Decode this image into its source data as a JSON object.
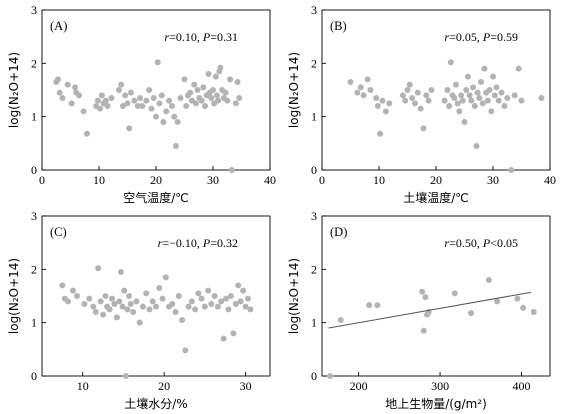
{
  "chart_data": [
    {
      "type": "scatter",
      "panel_label": "(A)",
      "stats": {
        "r": "0.10",
        "P": "0.31",
        "relation": "="
      },
      "xlabel": "空气温度/℃",
      "ylabel": "log(N₂O+14)",
      "xlim": [
        0,
        40
      ],
      "ylim": [
        0,
        3
      ],
      "xticks": [
        "0",
        "10",
        "20",
        "30",
        "40"
      ],
      "yticks": [
        "0",
        "1",
        "2",
        "3"
      ],
      "color": "#b3b3b3",
      "points": [
        [
          2.5,
          1.65
        ],
        [
          2.8,
          1.7
        ],
        [
          3.1,
          1.45
        ],
        [
          3.6,
          1.35
        ],
        [
          4.5,
          1.6
        ],
        [
          5.2,
          1.25
        ],
        [
          5.8,
          1.55
        ],
        [
          6,
          1.45
        ],
        [
          6.5,
          1.4
        ],
        [
          7.3,
          1.1
        ],
        [
          7.9,
          0.68
        ],
        [
          9.5,
          1.2
        ],
        [
          9.8,
          1.3
        ],
        [
          10.2,
          1.15
        ],
        [
          10.5,
          1.4
        ],
        [
          10.8,
          1.25
        ],
        [
          11.2,
          1.3
        ],
        [
          11.5,
          1.2
        ],
        [
          12.2,
          1.35
        ],
        [
          13.5,
          1.5
        ],
        [
          13.9,
          1.6
        ],
        [
          14.2,
          1.2
        ],
        [
          14.6,
          1.4
        ],
        [
          15,
          1.25
        ],
        [
          15.3,
          0.78
        ],
        [
          15.6,
          1.45
        ],
        [
          16.2,
          1.3
        ],
        [
          16.8,
          1.2
        ],
        [
          17.2,
          1.35
        ],
        [
          17.6,
          1.2
        ],
        [
          18.3,
          1.3
        ],
        [
          18.8,
          1.5
        ],
        [
          19.2,
          1.15
        ],
        [
          19.6,
          1.35
        ],
        [
          20,
          1.0
        ],
        [
          20.3,
          2.02
        ],
        [
          20.6,
          1.25
        ],
        [
          21,
          1.4
        ],
        [
          21.3,
          0.9
        ],
        [
          21.8,
          1.1
        ],
        [
          22.3,
          1.3
        ],
        [
          22.8,
          1.2
        ],
        [
          23.2,
          1.0
        ],
        [
          23.5,
          0.45
        ],
        [
          23.8,
          0.9
        ],
        [
          24.3,
          1.35
        ],
        [
          25,
          1.7
        ],
        [
          25.3,
          1.2
        ],
        [
          25.6,
          1.4
        ],
        [
          26,
          1.45
        ],
        [
          26.3,
          1.3
        ],
        [
          26.7,
          1.6
        ],
        [
          27,
          1.25
        ],
        [
          27.3,
          1.5
        ],
        [
          27.6,
          1.35
        ],
        [
          28,
          1.3
        ],
        [
          28.3,
          1.55
        ],
        [
          28.6,
          1.2
        ],
        [
          28.9,
          1.4
        ],
        [
          29.2,
          1.8
        ],
        [
          29.4,
          1.45
        ],
        [
          29.7,
          1.35
        ],
        [
          30,
          1.5
        ],
        [
          30.2,
          1.25
        ],
        [
          30.5,
          1.75
        ],
        [
          30.7,
          1.4
        ],
        [
          30.9,
          1.3
        ],
        [
          31.1,
          1.85
        ],
        [
          31.3,
          1.92
        ],
        [
          31.6,
          1.5
        ],
        [
          31.9,
          1.35
        ],
        [
          32.2,
          1.45
        ],
        [
          32.5,
          1.3
        ],
        [
          33,
          1.7
        ],
        [
          33.3,
          0.0
        ],
        [
          34,
          1.25
        ],
        [
          34.3,
          1.65
        ],
        [
          34.6,
          1.35
        ]
      ]
    },
    {
      "type": "scatter",
      "panel_label": "(B)",
      "stats": {
        "r": "0.05",
        "P": "0.59",
        "relation": "="
      },
      "xlabel": "土壤温度/℃",
      "ylabel": "log(N₂O+14)",
      "xlim": [
        0,
        40
      ],
      "ylim": [
        0,
        3
      ],
      "xticks": [
        "0",
        "10",
        "20",
        "30",
        "40"
      ],
      "yticks": [
        "0",
        "1",
        "2",
        "3"
      ],
      "color": "#b3b3b3",
      "points": [
        [
          5,
          1.65
        ],
        [
          6.2,
          1.45
        ],
        [
          6.8,
          1.55
        ],
        [
          7.3,
          1.4
        ],
        [
          8,
          1.7
        ],
        [
          8.5,
          1.5
        ],
        [
          9.5,
          1.35
        ],
        [
          9.8,
          1.2
        ],
        [
          10.2,
          0.68
        ],
        [
          10.6,
          1.3
        ],
        [
          11.2,
          1.1
        ],
        [
          11.8,
          1.25
        ],
        [
          14.2,
          1.4
        ],
        [
          14.6,
          1.3
        ],
        [
          15,
          1.5
        ],
        [
          15.4,
          1.6
        ],
        [
          15.8,
          1.35
        ],
        [
          16.3,
          1.25
        ],
        [
          16.8,
          1.45
        ],
        [
          17.3,
          1.15
        ],
        [
          17.8,
          0.78
        ],
        [
          18.3,
          1.4
        ],
        [
          18.7,
          1.3
        ],
        [
          19.2,
          1.5
        ],
        [
          21.5,
          1.3
        ],
        [
          22,
          1.5
        ],
        [
          22.3,
          1.2
        ],
        [
          22.6,
          2.02
        ],
        [
          22.9,
          1.4
        ],
        [
          23.2,
          1.35
        ],
        [
          23.5,
          1.6
        ],
        [
          23.8,
          1.25
        ],
        [
          24.1,
          1.1
        ],
        [
          24.4,
          1.4
        ],
        [
          24.7,
          1.3
        ],
        [
          25,
          0.9
        ],
        [
          25.3,
          1.5
        ],
        [
          25.6,
          1.75
        ],
        [
          25.9,
          1.4
        ],
        [
          26.2,
          1.3
        ],
        [
          26.5,
          1.55
        ],
        [
          26.8,
          1.2
        ],
        [
          27.1,
          0.45
        ],
        [
          27.3,
          1.45
        ],
        [
          27.6,
          1.35
        ],
        [
          27.9,
          1.65
        ],
        [
          28.2,
          1.25
        ],
        [
          28.5,
          1.9
        ],
        [
          28.8,
          1.45
        ],
        [
          29.1,
          1.3
        ],
        [
          29.4,
          1.5
        ],
        [
          29.7,
          1.1
        ],
        [
          30,
          1.75
        ],
        [
          30.3,
          1.4
        ],
        [
          30.6,
          1.55
        ],
        [
          31,
          1.3
        ],
        [
          31.5,
          1.45
        ],
        [
          32,
          1.2
        ],
        [
          32.5,
          1.35
        ],
        [
          33.2,
          0.0
        ],
        [
          33.8,
          1.4
        ],
        [
          34.5,
          1.9
        ],
        [
          35,
          1.3
        ],
        [
          38.5,
          1.35
        ]
      ]
    },
    {
      "type": "scatter",
      "panel_label": "(C)",
      "stats": {
        "r": "−0.10",
        "P": "0.32",
        "relation": "="
      },
      "xlabel": "土壤水分/%",
      "ylabel": "log(N₂O+14)",
      "xlim": [
        5,
        33
      ],
      "ylim": [
        0,
        3
      ],
      "xticks": [
        "10",
        "20",
        "30"
      ],
      "xtick_values": [
        10,
        20,
        30
      ],
      "yticks": [
        "0",
        "1",
        "2",
        "3"
      ],
      "color": "#b3b3b3",
      "points": [
        [
          7.5,
          1.7
        ],
        [
          7.8,
          1.45
        ],
        [
          8.2,
          1.4
        ],
        [
          8.8,
          1.6
        ],
        [
          9.3,
          1.5
        ],
        [
          10.2,
          1.35
        ],
        [
          10.8,
          1.45
        ],
        [
          11.3,
          1.3
        ],
        [
          11.6,
          1.2
        ],
        [
          11.9,
          2.02
        ],
        [
          12.2,
          1.4
        ],
        [
          12.5,
          1.15
        ],
        [
          12.8,
          1.5
        ],
        [
          13,
          1.3
        ],
        [
          13.3,
          1.25
        ],
        [
          13.6,
          1.45
        ],
        [
          13.9,
          1.35
        ],
        [
          14.2,
          1.1
        ],
        [
          14.5,
          1.4
        ],
        [
          14.7,
          1.95
        ],
        [
          14.9,
          1.3
        ],
        [
          15.1,
          1.6
        ],
        [
          15.3,
          0.0
        ],
        [
          15.5,
          1.25
        ],
        [
          15.7,
          1.5
        ],
        [
          15.9,
          1.35
        ],
        [
          16.2,
          1.2
        ],
        [
          16.6,
          1.4
        ],
        [
          17,
          1.0
        ],
        [
          17.4,
          1.3
        ],
        [
          17.8,
          1.55
        ],
        [
          18.2,
          1.25
        ],
        [
          18.6,
          1.4
        ],
        [
          19,
          1.3
        ],
        [
          19.4,
          1.65
        ],
        [
          19.8,
          1.45
        ],
        [
          20.2,
          1.85
        ],
        [
          20.6,
          1.3
        ],
        [
          21,
          1.35
        ],
        [
          21.4,
          1.2
        ],
        [
          21.8,
          1.5
        ],
        [
          22.2,
          1.05
        ],
        [
          22.6,
          0.48
        ],
        [
          23,
          1.3
        ],
        [
          23.4,
          1.4
        ],
        [
          23.8,
          1.25
        ],
        [
          24.2,
          1.55
        ],
        [
          24.6,
          1.45
        ],
        [
          25,
          1.3
        ],
        [
          25.4,
          1.6
        ],
        [
          25.8,
          1.35
        ],
        [
          26.2,
          1.5
        ],
        [
          26.6,
          1.3
        ],
        [
          27,
          1.4
        ],
        [
          27.3,
          0.7
        ],
        [
          27.6,
          1.45
        ],
        [
          27.9,
          1.25
        ],
        [
          28.2,
          1.5
        ],
        [
          28.5,
          0.8
        ],
        [
          28.8,
          1.35
        ],
        [
          29.1,
          1.7
        ],
        [
          29.4,
          1.4
        ],
        [
          29.7,
          1.6
        ],
        [
          30,
          1.3
        ],
        [
          30.3,
          1.45
        ],
        [
          30.6,
          1.25
        ]
      ]
    },
    {
      "type": "scatter",
      "panel_label": "(D)",
      "stats": {
        "r": "0.50",
        "P": "0.05",
        "relation": "<"
      },
      "xlabel": "地上生物量/(g/m²)",
      "ylabel": "log(N₂O+14)",
      "xlim": [
        155,
        435
      ],
      "ylim": [
        0,
        3
      ],
      "xticks": [
        "200",
        "300",
        "400"
      ],
      "xtick_values": [
        200,
        300,
        400
      ],
      "yticks": [
        "0",
        "1",
        "2",
        "3"
      ],
      "color": "#b3b3b3",
      "fit_line": {
        "x": [
          163,
          412
        ],
        "y": [
          0.9,
          1.57
        ]
      },
      "points": [
        [
          165,
          0.0
        ],
        [
          178,
          1.05
        ],
        [
          213,
          1.33
        ],
        [
          223,
          1.33
        ],
        [
          278,
          1.58
        ],
        [
          280,
          0.85
        ],
        [
          282,
          1.48
        ],
        [
          284,
          1.15
        ],
        [
          286,
          1.2
        ],
        [
          318,
          1.55
        ],
        [
          338,
          1.18
        ],
        [
          360,
          1.8
        ],
        [
          370,
          1.4
        ],
        [
          395,
          1.45
        ],
        [
          402,
          1.28
        ],
        [
          415,
          1.2
        ]
      ]
    }
  ]
}
